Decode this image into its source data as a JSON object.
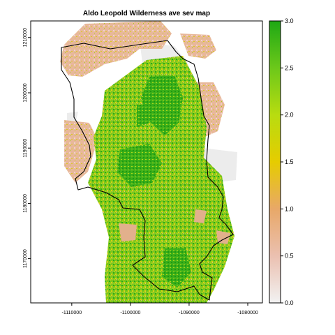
{
  "title": "Aldo Leopold Wilderness ave sev map",
  "map": {
    "x_ticks": [
      "-1110000",
      "-1100000",
      "-1090000",
      "-1080000"
    ],
    "x_tick_values": [
      -1110000,
      -1100000,
      -1090000,
      -1080000
    ],
    "y_ticks": [
      "1170000",
      "1180000",
      "1190000",
      "1200000",
      "1210000"
    ],
    "y_tick_values": [
      1170000,
      1180000,
      1190000,
      1200000,
      1210000
    ],
    "x_range": [
      -1117000,
      -1077500
    ],
    "y_range": [
      1162000,
      1213000
    ],
    "layers": [
      "burn severity raster",
      "wilderness boundary"
    ]
  },
  "legend": {
    "type": "continuous",
    "range": [
      0,
      3
    ],
    "labels": [
      "0.0",
      "0.5",
      "1.0",
      "1.5",
      "2.0",
      "2.5",
      "3.0"
    ],
    "colors": [
      "#f2f2f2",
      "#ebc0b0",
      "#e8a868",
      "#e6cc00",
      "#b8dc10",
      "#6cc81a",
      "#1ea814"
    ]
  },
  "colors": {
    "frame": "#000000",
    "no_data_gray": "#ebebeb",
    "boundary": "#000000"
  }
}
